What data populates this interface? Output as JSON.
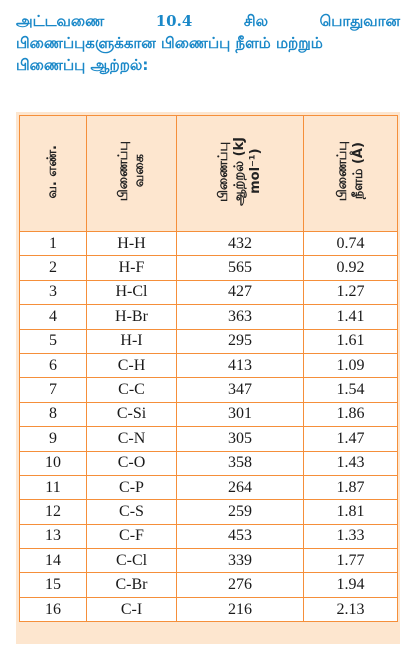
{
  "caption": {
    "prefix": "அட்டவணை",
    "number": "10.4",
    "w1": "சில",
    "w2": "பொதுவான",
    "line2": "பிணைப்புகளுக்கான பிணைப்பு நீளம் மற்றும்",
    "line3": "பிணைப்பு ஆற்றல்:"
  },
  "table": {
    "headers": [
      "வ. எண்.",
      "பிணைப்பு\nவகை",
      "பிணைப்பு\nஆற்றல் (kJ\nmol⁻¹)",
      "பிணைப்பு\nநீளம் (Å)"
    ],
    "rows": [
      [
        "1",
        "H-H",
        "432",
        "0.74"
      ],
      [
        "2",
        "H-F",
        "565",
        "0.92"
      ],
      [
        "3",
        "H-Cl",
        "427",
        "1.27"
      ],
      [
        "4",
        "H-Br",
        "363",
        "1.41"
      ],
      [
        "5",
        "H-I",
        "295",
        "1.61"
      ],
      [
        "6",
        "C-H",
        "413",
        "1.09"
      ],
      [
        "7",
        "C-C",
        "347",
        "1.54"
      ],
      [
        "8",
        "C-Si",
        "301",
        "1.86"
      ],
      [
        "9",
        "C-N",
        "305",
        "1.47"
      ],
      [
        "10",
        "C-O",
        "358",
        "1.43"
      ],
      [
        "11",
        "C-P",
        "264",
        "1.87"
      ],
      [
        "12",
        "C-S",
        "259",
        "1.81"
      ],
      [
        "13",
        "C-F",
        "453",
        "1.33"
      ],
      [
        "14",
        "C-Cl",
        "339",
        "1.77"
      ],
      [
        "15",
        "C-Br",
        "276",
        "1.94"
      ],
      [
        "16",
        "C-I",
        "216",
        "2.13"
      ]
    ]
  },
  "colors": {
    "caption": "#1a88c8",
    "border": "#f58f3a",
    "header_bg": "#fde6cf"
  }
}
